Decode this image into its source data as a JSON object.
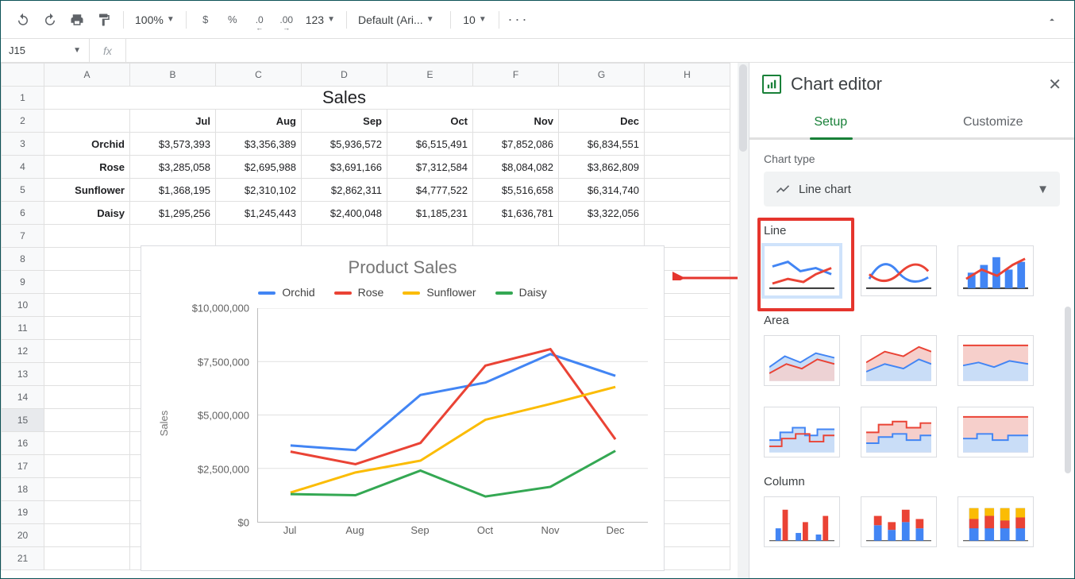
{
  "toolbar": {
    "zoom": "100%",
    "currency_icon": "$",
    "percent_icon": "%",
    "decrease_dec": ".0",
    "increase_dec": ".00",
    "number_fmt": "123",
    "font": "Default (Ari...",
    "font_size": "10"
  },
  "namebox": {
    "ref": "J15"
  },
  "fx_label": "fx",
  "sheet": {
    "columns": [
      "A",
      "B",
      "C",
      "D",
      "E",
      "F",
      "G",
      "H"
    ],
    "title": "Sales",
    "months": [
      "Jul",
      "Aug",
      "Sep",
      "Oct",
      "Nov",
      "Dec"
    ],
    "rows": [
      {
        "label": "Orchid",
        "values": [
          "$3,573,393",
          "$3,356,389",
          "$5,936,572",
          "$6,515,491",
          "$7,852,086",
          "$6,834,551"
        ]
      },
      {
        "label": "Rose",
        "values": [
          "$3,285,058",
          "$2,695,988",
          "$3,691,166",
          "$7,312,584",
          "$8,084,082",
          "$3,862,809"
        ]
      },
      {
        "label": "Sunflower",
        "values": [
          "$1,368,195",
          "$2,310,102",
          "$2,862,311",
          "$4,777,522",
          "$5,516,658",
          "$6,314,740"
        ]
      },
      {
        "label": "Daisy",
        "values": [
          "$1,295,256",
          "$1,245,443",
          "$2,400,048",
          "$1,185,231",
          "$1,636,781",
          "$3,322,056"
        ]
      }
    ],
    "blank_rows": 15,
    "selected_row": 15
  },
  "chart": {
    "type": "line",
    "title": "Product Sales",
    "ylabel": "Sales",
    "ylim": [
      0,
      10000000
    ],
    "ytick_labels": [
      "$0",
      "$2,500,000",
      "$5,000,000",
      "$7,500,000",
      "$10,000,000"
    ],
    "ytick_values": [
      0,
      2500000,
      5000000,
      7500000,
      10000000
    ],
    "categories": [
      "Jul",
      "Aug",
      "Sep",
      "Oct",
      "Nov",
      "Dec"
    ],
    "series": [
      {
        "name": "Orchid",
        "color": "#4285f4",
        "values": [
          3573393,
          3356389,
          5936572,
          6515491,
          7852086,
          6834551
        ]
      },
      {
        "name": "Rose",
        "color": "#ea4335",
        "values": [
          3285058,
          2695988,
          3691166,
          7312584,
          8084082,
          3862809
        ]
      },
      {
        "name": "Sunflower",
        "color": "#fbbc04",
        "values": [
          1368195,
          2310102,
          2862311,
          4777522,
          5516658,
          6314740
        ]
      },
      {
        "name": "Daisy",
        "color": "#34a853",
        "values": [
          1295256,
          1245443,
          2400048,
          1185231,
          1636781,
          3322056
        ]
      }
    ],
    "grid_color": "#e0e0e0",
    "axis_color": "#bdbdbd",
    "line_width": 3
  },
  "arrow_color": "#e5352d",
  "panel": {
    "title": "Chart editor",
    "tabs": {
      "setup": "Setup",
      "customize": "Customize",
      "active": "setup"
    },
    "chart_type_label": "Chart type",
    "chart_type_value": "Line chart",
    "sections": {
      "line": "Line",
      "area": "Area",
      "column": "Column"
    }
  }
}
